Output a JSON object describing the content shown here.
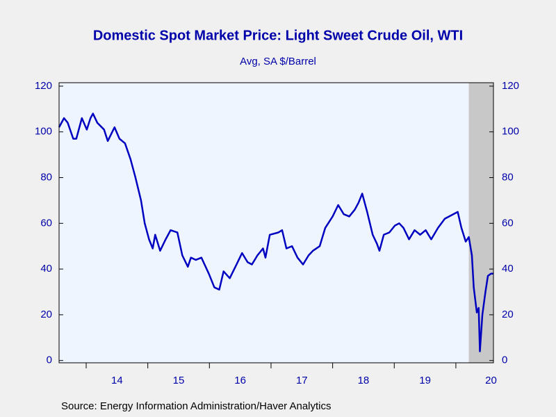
{
  "chart_data": {
    "type": "line",
    "title": "Domestic Spot Market Price: Light Sweet Crude Oil, WTI",
    "subtitle": "Avg, SA $/Barrel",
    "source": "Source:  Energy Information Administration/Haver Analytics",
    "xlim": [
      2013.56,
      2020.61
    ],
    "ylim": [
      -1,
      121.5
    ],
    "yticks": [
      0,
      20,
      40,
      60,
      80,
      100,
      120
    ],
    "xticks": [
      {
        "value": 2014.5,
        "label": "14"
      },
      {
        "value": 2015.5,
        "label": "15"
      },
      {
        "value": 2016.5,
        "label": "16"
      },
      {
        "value": 2017.5,
        "label": "17"
      },
      {
        "value": 2018.5,
        "label": "18"
      },
      {
        "value": 2019.5,
        "label": "19"
      },
      {
        "value": 2020.57,
        "label": "20"
      }
    ],
    "recessions": [
      [
        2020.21,
        2020.61
      ]
    ],
    "series": [
      {
        "color": "#0000c0",
        "x": [
          2013.56,
          2013.64,
          2013.7,
          2013.79,
          2013.84,
          2013.93,
          2014.01,
          2014.07,
          2014.11,
          2014.18,
          2014.29,
          2014.35,
          2014.46,
          2014.54,
          2014.63,
          2014.72,
          2014.8,
          2014.89,
          2014.95,
          2015.02,
          2015.08,
          2015.12,
          2015.2,
          2015.29,
          2015.37,
          2015.48,
          2015.56,
          2015.65,
          2015.7,
          2015.78,
          2015.87,
          2015.99,
          2016.08,
          2016.16,
          2016.23,
          2016.33,
          2016.44,
          2016.53,
          2016.62,
          2016.69,
          2016.78,
          2016.87,
          2016.91,
          2016.98,
          2017.12,
          2017.18,
          2017.25,
          2017.34,
          2017.43,
          2017.52,
          2017.61,
          2017.68,
          2017.79,
          2017.88,
          2018.0,
          2018.09,
          2018.18,
          2018.27,
          2018.36,
          2018.42,
          2018.48,
          2018.56,
          2018.65,
          2018.72,
          2018.76,
          2018.83,
          2018.92,
          2019.01,
          2019.08,
          2019.15,
          2019.24,
          2019.33,
          2019.42,
          2019.51,
          2019.6,
          2019.71,
          2019.82,
          2020.03,
          2020.09,
          2020.16,
          2020.21,
          2020.26,
          2020.29,
          2020.34,
          2020.37,
          2020.39,
          2020.43,
          2020.48,
          2020.52,
          2020.57,
          2020.61
        ],
        "values": [
          102,
          106,
          104,
          97,
          97,
          106,
          101,
          106,
          108,
          104,
          101,
          96,
          102,
          97,
          95,
          88,
          80,
          70,
          60,
          53,
          49,
          55,
          48,
          53,
          57,
          56,
          46,
          41,
          45,
          44,
          45,
          38,
          32,
          31,
          39,
          36,
          42,
          47,
          43,
          42,
          46,
          49,
          45,
          55,
          56,
          57,
          49,
          50,
          45,
          42,
          46,
          48,
          50,
          58,
          63,
          68,
          64,
          63,
          66,
          69,
          73,
          65,
          55,
          51,
          48,
          55,
          56,
          59,
          60,
          58,
          53,
          57,
          55,
          57,
          53,
          58,
          62,
          65,
          58,
          52,
          54,
          46,
          32,
          21,
          23,
          4,
          20,
          30,
          37,
          38,
          38
        ]
      }
    ]
  }
}
